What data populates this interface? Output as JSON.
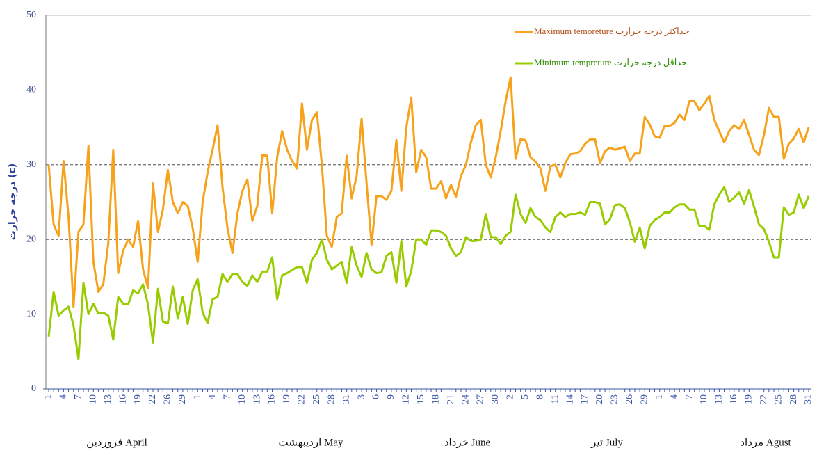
{
  "chart_data": {
    "type": "line",
    "y_label": "درجه حرارت (c)",
    "month_labels": [
      "فروردین April",
      "اردیبهشت May",
      "خرداد June",
      "تیر July",
      "مرداد Agust"
    ],
    "categories": [
      "1",
      null,
      null,
      "4",
      null,
      null,
      "7",
      null,
      null,
      "10",
      null,
      null,
      "13",
      null,
      null,
      "16",
      null,
      null,
      "19",
      null,
      null,
      "22",
      null,
      null,
      "26",
      null,
      null,
      "29",
      null,
      null,
      "1",
      null,
      null,
      "4",
      null,
      null,
      "7",
      null,
      null,
      "10",
      null,
      null,
      "13",
      null,
      null,
      "16",
      null,
      null,
      "19",
      null,
      null,
      "22",
      null,
      null,
      "25",
      null,
      null,
      "28",
      null,
      null,
      "31",
      null,
      null,
      "3",
      null,
      null,
      "6",
      null,
      null,
      "9",
      null,
      null,
      "12",
      null,
      null,
      "15",
      null,
      null,
      "18",
      null,
      null,
      "21",
      null,
      null,
      "24",
      null,
      null,
      "27",
      null,
      null,
      "30",
      null,
      null,
      "2",
      null,
      null,
      "5",
      null,
      null,
      "8",
      null,
      null,
      "11",
      null,
      null,
      "14",
      null,
      null,
      "17",
      null,
      null,
      "20",
      null,
      null,
      "23",
      null,
      null,
      "26",
      null,
      null,
      "29",
      null,
      null,
      "1",
      null,
      null,
      "4",
      null,
      null,
      "7",
      null,
      null,
      "10",
      null,
      null,
      "13",
      null,
      null,
      "16",
      null,
      null,
      "19",
      null,
      null,
      "22",
      null,
      null,
      "25",
      null,
      null,
      "28",
      null,
      null,
      "31"
    ],
    "series": [
      {
        "name": "Maximum temoreture حداکثر درجه حرارت",
        "color": "#f7a21b",
        "values": [
          30,
          22,
          20.5,
          30.5,
          23,
          11,
          21,
          22,
          32.5,
          17,
          13,
          14,
          19.5,
          32,
          15.5,
          18.5,
          20,
          19,
          22.5,
          16,
          13.5,
          27.5,
          21,
          24,
          29.3,
          25,
          23.5,
          25,
          24.5,
          21.5,
          17,
          25,
          29,
          32,
          35.3,
          27,
          21.5,
          18.2,
          23.5,
          26.5,
          28,
          22.5,
          24.5,
          31.3,
          31.2,
          23.5,
          31,
          34.5,
          32,
          30.5,
          29.5,
          38.2,
          32,
          36,
          37,
          30,
          20.5,
          19,
          23,
          23.5,
          31.2,
          25.5,
          28.5,
          36.2,
          27.5,
          19.3,
          25.8,
          25.8,
          25.3,
          26.5,
          33.3,
          26.5,
          35,
          39,
          29,
          32,
          31,
          26.8,
          26.8,
          27.8,
          25.5,
          27.3,
          25.7,
          28.5,
          30,
          33,
          35.3,
          36,
          30,
          28.3,
          31,
          34.5,
          38.5,
          41.7,
          30.8,
          33.4,
          33.3,
          31,
          30.4,
          29.5,
          26.5,
          29.8,
          30,
          28.3,
          30.2,
          31.4,
          31.5,
          31.8,
          32.8,
          33.4,
          33.4,
          30.2,
          31.8,
          32.3,
          32,
          32.2,
          32.4,
          30.5,
          31.5,
          31.5,
          36.4,
          35.4,
          33.8,
          33.6,
          35.2,
          35.2,
          35.6,
          36.7,
          36,
          38.5,
          38.5,
          37.3,
          38.2,
          39.2,
          36,
          34.5,
          33,
          34.5,
          35.3,
          34.8,
          36,
          34,
          32,
          31.3,
          34,
          37.6,
          36.4,
          36.4,
          30.8,
          32.8,
          33.5,
          34.8,
          33,
          35
        ]
      },
      {
        "name": "Minimum tempreture حداقل درجه حرارت",
        "color": "#99cc00",
        "values": [
          7,
          13,
          9.8,
          10.5,
          11,
          8.5,
          4,
          14.2,
          10,
          11.4,
          10.1,
          10.2,
          9.8,
          6.6,
          12.3,
          11.4,
          11.3,
          13.2,
          12.8,
          14,
          11.3,
          6.2,
          13.4,
          9,
          8.8,
          13.7,
          9.4,
          12.3,
          8.7,
          13.2,
          14.7,
          10.2,
          8.8,
          12,
          12.3,
          15.4,
          14.3,
          15.4,
          15.4,
          14.3,
          13.8,
          15.2,
          14.3,
          15.7,
          15.7,
          17.6,
          12,
          15.2,
          15.5,
          15.9,
          16.3,
          16.3,
          14.2,
          17.3,
          18.2,
          20,
          17.3,
          16,
          16.5,
          17,
          14.2,
          19,
          16.5,
          15,
          18.2,
          16,
          15.5,
          15.6,
          17.8,
          18.3,
          14.2,
          19.8,
          13.7,
          15.8,
          20,
          20,
          19.3,
          21.2,
          21.2,
          21,
          20.5,
          18.8,
          17.8,
          18.3,
          20.3,
          19.8,
          19.8,
          20,
          23.4,
          20.3,
          20.3,
          19.4,
          20.5,
          21,
          26,
          23.4,
          22.2,
          24.2,
          23,
          22.6,
          21.6,
          21,
          23,
          23.6,
          23,
          23.4,
          23.4,
          23.6,
          23.3,
          25,
          25,
          24.8,
          22,
          22.7,
          24.6,
          24.7,
          24.2,
          22.3,
          19.7,
          21.6,
          18.8,
          21.8,
          22.6,
          23,
          23.6,
          23.6,
          24.3,
          24.7,
          24.7,
          24,
          24,
          21.8,
          21.8,
          21.3,
          24.7,
          26,
          27,
          25,
          25.6,
          26.3,
          24.8,
          26.6,
          24.4,
          22,
          21.4,
          19.7,
          17.6,
          17.6,
          24.3,
          23.3,
          23.6,
          26,
          24.2,
          25.8
        ]
      }
    ],
    "ylim": [
      0,
      50
    ],
    "yticks": [
      0,
      10,
      20,
      30,
      40,
      50
    ],
    "grid": true
  }
}
